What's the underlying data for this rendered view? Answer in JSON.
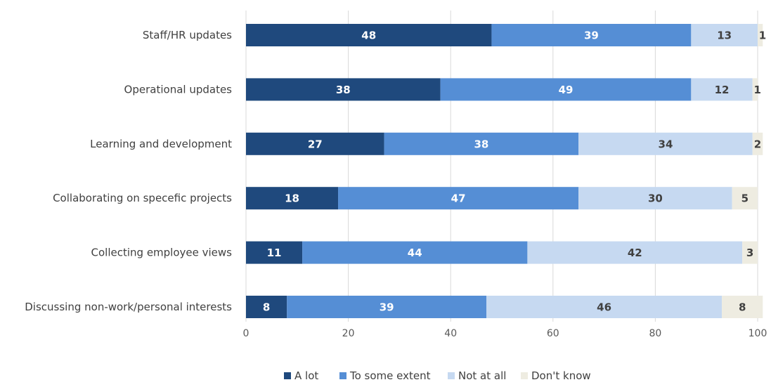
{
  "chart_data": {
    "type": "bar",
    "orientation": "horizontal",
    "stacked": true,
    "title": "",
    "xlabel": "",
    "ylabel": "",
    "xlim": [
      0,
      100
    ],
    "xticks": [
      0,
      20,
      40,
      60,
      80,
      100
    ],
    "grid": "vertical",
    "legend_position": "bottom",
    "categories": [
      "Staff/HR updates",
      "Operational updates",
      "Learning and development",
      "Collaborating on specefic projects",
      "Collecting employee views",
      "Discussing non-work/personal interests"
    ],
    "series": [
      {
        "name": "A lot",
        "color": "#1f497d",
        "label_color": "#ffffff",
        "values": [
          48,
          38,
          27,
          18,
          11,
          8
        ]
      },
      {
        "name": "To some extent",
        "color": "#558ed5",
        "label_color": "#ffffff",
        "values": [
          39,
          49,
          38,
          47,
          44,
          39
        ]
      },
      {
        "name": "Not at all",
        "color": "#c6d9f1",
        "label_color": "#404040",
        "values": [
          13,
          12,
          34,
          30,
          42,
          46
        ]
      },
      {
        "name": "Don't know",
        "color": "#eeece1",
        "label_color": "#404040",
        "values": [
          1,
          1,
          2,
          5,
          3,
          8
        ]
      }
    ]
  }
}
